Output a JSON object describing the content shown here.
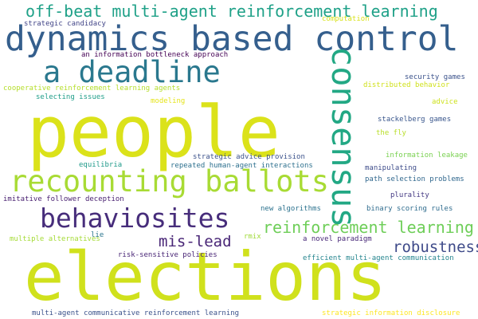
{
  "words": [
    {
      "text": "elections",
      "color": "#d0e11c"
    },
    {
      "text": "people",
      "color": "#dbe21a"
    },
    {
      "text": "dynamics based control",
      "color": "#355f8d"
    },
    {
      "text": "recounting ballots",
      "color": "#a8db34"
    },
    {
      "text": "consensus",
      "color": "#22a884"
    },
    {
      "text": "behaviosites",
      "color": "#472d7b"
    },
    {
      "text": "a deadline",
      "color": "#2a788e"
    },
    {
      "text": "off-beat multi-agent reinforcement learning",
      "color": "#1fa188"
    },
    {
      "text": "reinforcement learning",
      "color": "#6ece58"
    },
    {
      "text": "robustness",
      "color": "#3e4a89"
    },
    {
      "text": "mis-lead",
      "color": "#482576"
    },
    {
      "text": "strategic candidacy",
      "color": "#414487"
    },
    {
      "text": "computation",
      "color": "#d8e219"
    },
    {
      "text": "an information bottleneck approach",
      "color": "#440154"
    },
    {
      "text": "cooperative reinforcement learning agents",
      "color": "#b5de2b"
    },
    {
      "text": "distributed behavior",
      "color": "#d0e11c"
    },
    {
      "text": "security games",
      "color": "#3b528b"
    },
    {
      "text": "selecting issues",
      "color": "#1f9e89"
    },
    {
      "text": "modeling",
      "color": "#e5e419"
    },
    {
      "text": "advice",
      "color": "#cde11d"
    },
    {
      "text": "stackelberg games",
      "color": "#39568c"
    },
    {
      "text": "the fly",
      "color": "#b8de29"
    },
    {
      "text": "information leakage",
      "color": "#7ad151"
    },
    {
      "text": "strategic advice provision",
      "color": "#3b528b"
    },
    {
      "text": "equilibria",
      "color": "#1f9a8a"
    },
    {
      "text": "repeated human-agent interactions",
      "color": "#2d708e"
    },
    {
      "text": "manipulating",
      "color": "#3e4c8a"
    },
    {
      "text": "path selection problems",
      "color": "#31688e"
    },
    {
      "text": "imitative follower deception",
      "color": "#481f70"
    },
    {
      "text": "plurality",
      "color": "#443983"
    },
    {
      "text": "new algorithms",
      "color": "#2c728e"
    },
    {
      "text": "binary scoring rules",
      "color": "#2f6c8e"
    },
    {
      "text": "lie",
      "color": "#2b758e"
    },
    {
      "text": "multiple alternatives",
      "color": "#a5db36"
    },
    {
      "text": "rmix",
      "color": "#a0da39"
    },
    {
      "text": "a novel paradigm",
      "color": "#482878"
    },
    {
      "text": "risk-sensitive policies",
      "color": "#482475"
    },
    {
      "text": "efficient multi-agent communication",
      "color": "#25858e"
    },
    {
      "text": "multi-agent communicative reinforcement learning",
      "color": "#3b528b"
    },
    {
      "text": "strategic information disclosure",
      "color": "#fde725"
    }
  ]
}
